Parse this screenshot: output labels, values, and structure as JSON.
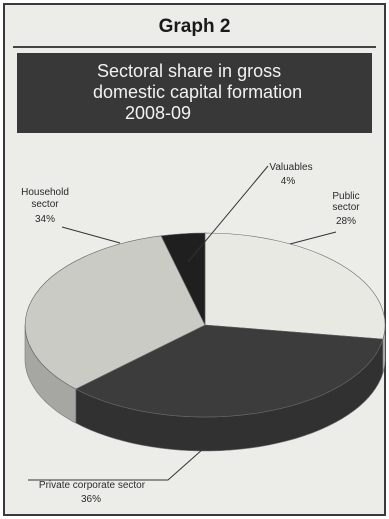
{
  "graph_label": "Graph 2",
  "chart_data": {
    "type": "pie",
    "title_lines": [
      "Sectoral share in gross",
      "domestic capital formation",
      "2008-09"
    ],
    "style": "3d",
    "slices": [
      {
        "label_lines": [
          "Public",
          "sector"
        ],
        "value_text": "28%",
        "value": 28,
        "color": "#e9e9e3"
      },
      {
        "label_lines": [
          "Private corporate sector"
        ],
        "value_text": "36%",
        "value": 36,
        "color": "#3c3c3c"
      },
      {
        "label_lines": [
          "Household",
          "sector"
        ],
        "value_text": "34%",
        "value": 34,
        "color": "#cbcbc6"
      },
      {
        "label_lines": [
          "Valuables"
        ],
        "value_text": "4%",
        "value": 4,
        "color": "#1f1f1f"
      }
    ]
  }
}
